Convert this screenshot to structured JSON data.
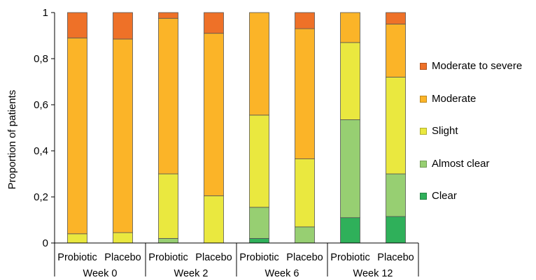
{
  "chart_data": {
    "type": "bar",
    "stacked": true,
    "ylabel": "Proportion of patients",
    "ylim": [
      0,
      1
    ],
    "yticks": [
      "0",
      "0,2",
      "0,4",
      "0,6",
      "0,8",
      "1"
    ],
    "groups": [
      {
        "label": "Week 0",
        "categories": [
          "Probiotic",
          "Placebo"
        ]
      },
      {
        "label": "Week 2",
        "categories": [
          "Probiotic",
          "Placebo"
        ]
      },
      {
        "label": "Week 6",
        "categories": [
          "Probiotic",
          "Placebo"
        ]
      },
      {
        "label": "Week 12",
        "categories": [
          "Probiotic",
          "Placebo"
        ]
      }
    ],
    "series": [
      {
        "name": "Clear",
        "color": "#2fb05a",
        "values": [
          0,
          0,
          0,
          0,
          0.02,
          0,
          0.11,
          0.115
        ]
      },
      {
        "name": "Almost clear",
        "color": "#97cf72",
        "values": [
          0,
          0,
          0.02,
          0,
          0.135,
          0.07,
          0.425,
          0.185
        ]
      },
      {
        "name": "Slight",
        "color": "#eae83f",
        "values": [
          0.04,
          0.045,
          0.28,
          0.205,
          0.4,
          0.295,
          0.335,
          0.42
        ]
      },
      {
        "name": "Moderate",
        "color": "#fbb428",
        "values": [
          0.85,
          0.84,
          0.675,
          0.705,
          0.445,
          0.565,
          0.13,
          0.23
        ]
      },
      {
        "name": "Moderate to severe",
        "color": "#ee7128",
        "values": [
          0.11,
          0.115,
          0.025,
          0.09,
          0,
          0.07,
          0,
          0.05
        ]
      }
    ],
    "legend_position": "right",
    "grid": false
  }
}
